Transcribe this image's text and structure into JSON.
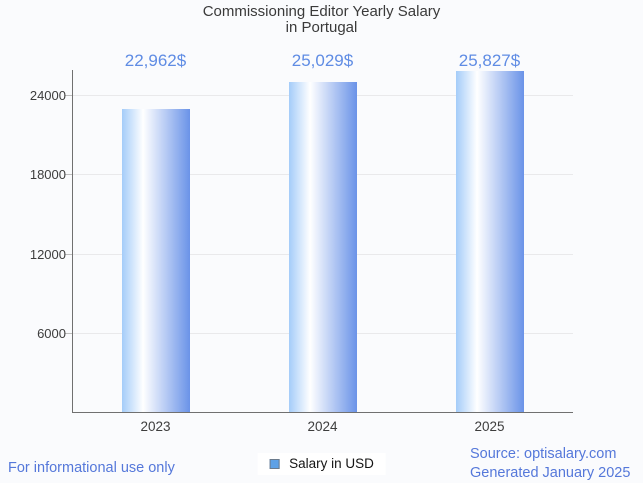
{
  "title": {
    "line1": "Commissioning Editor Yearly Salary",
    "line2": "in Portugal"
  },
  "chart_data": {
    "type": "bar",
    "title": "Commissioning Editor Yearly Salary in Portugal",
    "categories": [
      "2023",
      "2024",
      "2025"
    ],
    "series": [
      {
        "name": "Salary in USD",
        "values": [
          22962,
          25029,
          25827
        ]
      }
    ],
    "value_labels": [
      "22,962$",
      "25,029$",
      "25,827$"
    ],
    "yticks": [
      6000,
      12000,
      18000,
      24000
    ],
    "ytick_labels": [
      "6000",
      "12000",
      "18000",
      "24000"
    ],
    "ylim": [
      0,
      25900
    ],
    "xlabel": "",
    "ylabel": "",
    "grid": true,
    "legend_position": "bottom"
  },
  "legend": {
    "label": "Salary in USD"
  },
  "footer": {
    "disclaimer": "For informational use only",
    "source_line1": "Source: optisalary.com",
    "source_line2": "Generated January 2025"
  },
  "colors": {
    "background": "#fafbfd",
    "title_text": "#3a3a3a",
    "axis_text": "#3d3d3d",
    "grid": "#e9e9eb",
    "axis_line": "#707070",
    "tick_mark": "#bdbdbd",
    "value_label": "#5f8ce4",
    "footer_link": "#5578da",
    "legend_text": "#141414",
    "legend_background": "#ffffff",
    "legend_marker_fill": "#5ea1e6",
    "legend_marker_border": "#6b7b8c",
    "bar_gradient_left": "#a4ccf9",
    "bar_gradient_mid": "#ffffff",
    "bar_gradient_right": "#6a93e8"
  }
}
